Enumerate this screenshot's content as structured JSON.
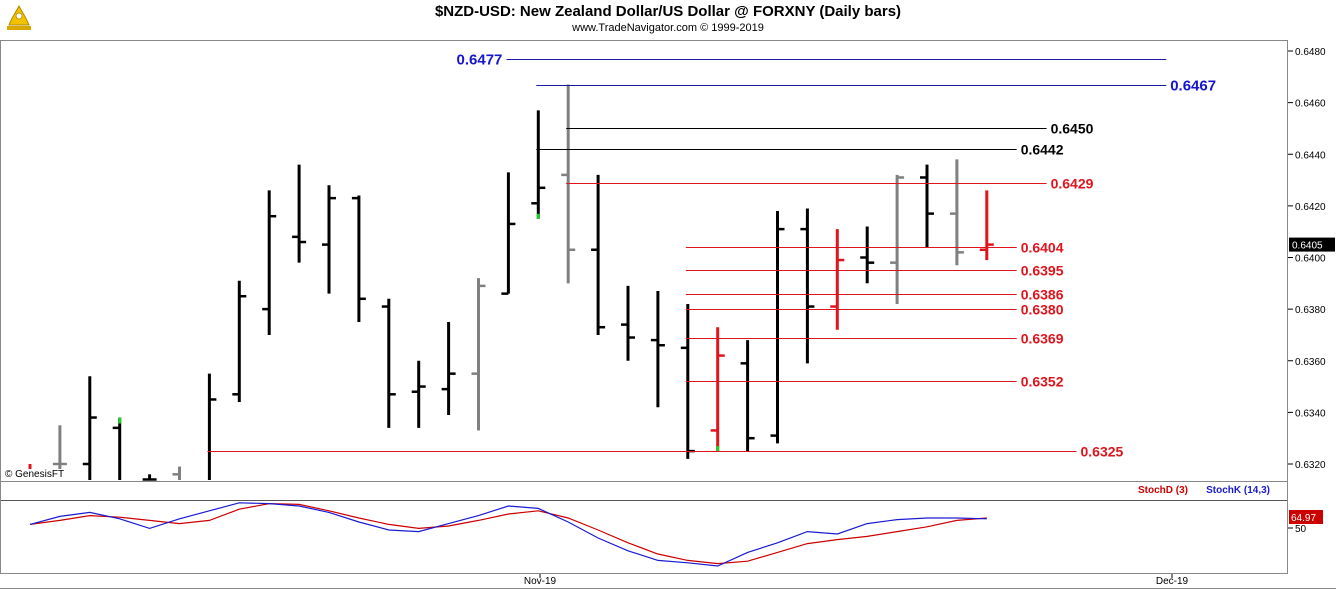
{
  "title": "$NZD-USD:  New Zealand Dollar/US Dollar @ FORXNY  (Daily bars)",
  "subtitle": "www.TradeNavigator.com © 1999-2019",
  "copyright": "© GenesisFT",
  "colors": {
    "up": "#000000",
    "down_gray": "#808080",
    "red": "#e0141c",
    "green": "#22cc22",
    "blue_line": "#1a1aa8",
    "blue_label": "#1515d0",
    "stoch_d": "#cc0000",
    "stoch_k": "#1a1ad0"
  },
  "chart_data": [
    {
      "type": "ohlc",
      "name": "price",
      "ylim": [
        0.6315,
        0.6485
      ],
      "y_ticks": [
        "0.6480",
        "0.6460",
        "0.6440",
        "0.6420",
        "0.6400",
        "0.6380",
        "0.6360",
        "0.6340",
        "0.6320"
      ],
      "current_value": "0.6405",
      "bars": [
        {
          "o": 0.6315,
          "h": 0.632,
          "l": 0.631,
          "c": 0.6315,
          "color": "red"
        },
        {
          "o": 0.632,
          "h": 0.6335,
          "l": 0.631,
          "c": 0.632,
          "color": "gray"
        },
        {
          "o": 0.632,
          "h": 0.6354,
          "l": 0.631,
          "c": 0.6338,
          "color": "black"
        },
        {
          "o": 0.6334,
          "h": 0.6338,
          "l": 0.631,
          "c": 0.6312,
          "color": "black",
          "topColor": "green"
        },
        {
          "o": 0.6314,
          "h": 0.6316,
          "l": 0.6305,
          "c": 0.6314,
          "color": "black"
        },
        {
          "o": 0.6316,
          "h": 0.6319,
          "l": 0.6305,
          "c": 0.6312,
          "color": "gray"
        },
        {
          "o": 0.6312,
          "h": 0.6355,
          "l": 0.6306,
          "c": 0.6345,
          "color": "black"
        },
        {
          "o": 0.6347,
          "h": 0.6391,
          "l": 0.6344,
          "c": 0.6385,
          "color": "black"
        },
        {
          "o": 0.638,
          "h": 0.6426,
          "l": 0.637,
          "c": 0.6416,
          "color": "black"
        },
        {
          "o": 0.6408,
          "h": 0.6436,
          "l": 0.6398,
          "c": 0.6406,
          "color": "black"
        },
        {
          "o": 0.6405,
          "h": 0.6428,
          "l": 0.6386,
          "c": 0.6423,
          "color": "black"
        },
        {
          "o": 0.6423,
          "h": 0.6424,
          "l": 0.6375,
          "c": 0.6384,
          "color": "black"
        },
        {
          "o": 0.6381,
          "h": 0.6384,
          "l": 0.6334,
          "c": 0.6347,
          "color": "black"
        },
        {
          "o": 0.6348,
          "h": 0.636,
          "l": 0.6334,
          "c": 0.635,
          "color": "black"
        },
        {
          "o": 0.6349,
          "h": 0.6375,
          "l": 0.6339,
          "c": 0.6355,
          "color": "black"
        },
        {
          "o": 0.6355,
          "h": 0.6392,
          "l": 0.6333,
          "c": 0.6389,
          "color": "gray"
        },
        {
          "o": 0.6386,
          "h": 0.6433,
          "l": 0.6386,
          "c": 0.6413,
          "color": "black"
        },
        {
          "o": 0.6421,
          "h": 0.6457,
          "l": 0.6415,
          "c": 0.6427,
          "color": "black",
          "bottomColor": "green"
        },
        {
          "o": 0.6432,
          "h": 0.6467,
          "l": 0.639,
          "c": 0.6403,
          "color": "gray"
        },
        {
          "o": 0.6403,
          "h": 0.6432,
          "l": 0.637,
          "c": 0.6373,
          "color": "black"
        },
        {
          "o": 0.6374,
          "h": 0.6389,
          "l": 0.636,
          "c": 0.6369,
          "color": "black"
        },
        {
          "o": 0.6368,
          "h": 0.6387,
          "l": 0.6342,
          "c": 0.6366,
          "color": "black"
        },
        {
          "o": 0.6365,
          "h": 0.6382,
          "l": 0.6322,
          "c": 0.6325,
          "color": "black"
        },
        {
          "o": 0.6333,
          "h": 0.6373,
          "l": 0.6325,
          "c": 0.6362,
          "color": "red",
          "bottomColor": "green"
        },
        {
          "o": 0.6359,
          "h": 0.6368,
          "l": 0.6325,
          "c": 0.633,
          "color": "black"
        },
        {
          "o": 0.6331,
          "h": 0.6418,
          "l": 0.6328,
          "c": 0.6411,
          "color": "black"
        },
        {
          "o": 0.6411,
          "h": 0.6419,
          "l": 0.6359,
          "c": 0.6381,
          "color": "black"
        },
        {
          "o": 0.6381,
          "h": 0.6411,
          "l": 0.6372,
          "c": 0.6399,
          "color": "red"
        },
        {
          "o": 0.64,
          "h": 0.6412,
          "l": 0.639,
          "c": 0.6398,
          "color": "black"
        },
        {
          "o": 0.6398,
          "h": 0.6432,
          "l": 0.6382,
          "c": 0.6431,
          "color": "gray"
        },
        {
          "o": 0.6431,
          "h": 0.6436,
          "l": 0.6404,
          "c": 0.6417,
          "color": "black"
        },
        {
          "o": 0.6417,
          "h": 0.6438,
          "l": 0.6397,
          "c": 0.6402,
          "color": "gray"
        },
        {
          "o": 0.6403,
          "h": 0.6426,
          "l": 0.6399,
          "c": 0.6405,
          "color": "red"
        }
      ],
      "levels": [
        {
          "value": 0.6477,
          "label": "0.6477",
          "color": "blue",
          "from_bar": 16,
          "to_bar": 38,
          "label_side": "left"
        },
        {
          "value": 0.6467,
          "label": "0.6467",
          "color": "blue",
          "from_bar": 17,
          "to_bar": 38,
          "label_side": "right"
        },
        {
          "value": 0.645,
          "label": "0.6450",
          "color": "black",
          "from_bar": 18,
          "to_bar": 34,
          "label_side": "right"
        },
        {
          "value": 0.6442,
          "label": "0.6442",
          "color": "black",
          "from_bar": 17,
          "to_bar": 33,
          "label_side": "right"
        },
        {
          "value": 0.6429,
          "label": "0.6429",
          "color": "red",
          "from_bar": 18,
          "to_bar": 34,
          "label_side": "right"
        },
        {
          "value": 0.6404,
          "label": "0.6404",
          "color": "red",
          "from_bar": 22,
          "to_bar": 33,
          "label_side": "right"
        },
        {
          "value": 0.6395,
          "label": "0.6395",
          "color": "red",
          "from_bar": 22,
          "to_bar": 33,
          "label_side": "right"
        },
        {
          "value": 0.6386,
          "label": "0.6386",
          "color": "red",
          "from_bar": 22,
          "to_bar": 33,
          "label_side": "right"
        },
        {
          "value": 0.638,
          "label": "0.6380",
          "color": "red",
          "from_bar": 22,
          "to_bar": 33,
          "label_side": "right"
        },
        {
          "value": 0.6369,
          "label": "0.6369",
          "color": "red",
          "from_bar": 22,
          "to_bar": 33,
          "label_side": "right"
        },
        {
          "value": 0.6352,
          "label": "0.6352",
          "color": "red",
          "from_bar": 22,
          "to_bar": 33,
          "label_side": "right"
        },
        {
          "value": 0.6325,
          "label": "0.6325",
          "color": "red",
          "from_bar": 6,
          "to_bar": 35,
          "label_side": "right"
        }
      ]
    },
    {
      "type": "line",
      "name": "stochastic",
      "ylim": [
        0,
        100
      ],
      "y_ticks": [
        "50"
      ],
      "current_value": "64.97",
      "legend": [
        "StochD (3)",
        "StochK (14,3)"
      ],
      "series": [
        {
          "name": "StochD (3)",
          "color": "stoch_d",
          "values": [
            57,
            62,
            68,
            66,
            62,
            58,
            62,
            76,
            83,
            82,
            74,
            65,
            57,
            52,
            55,
            62,
            70,
            74,
            65,
            50,
            34,
            20,
            12,
            8,
            11,
            22,
            33,
            38,
            42,
            48,
            54,
            62,
            65
          ]
        },
        {
          "name": "StochK (14,3)",
          "color": "stoch_k",
          "values": [
            57,
            67,
            72,
            64,
            52,
            64,
            74,
            84,
            83,
            80,
            72,
            60,
            50,
            48,
            58,
            68,
            80,
            77,
            60,
            40,
            24,
            12,
            9,
            5,
            22,
            34,
            48,
            45,
            58,
            63,
            65,
            65,
            64
          ]
        }
      ]
    }
  ],
  "x_axis": {
    "labels": [
      "Nov-19",
      "Dec-19"
    ]
  }
}
